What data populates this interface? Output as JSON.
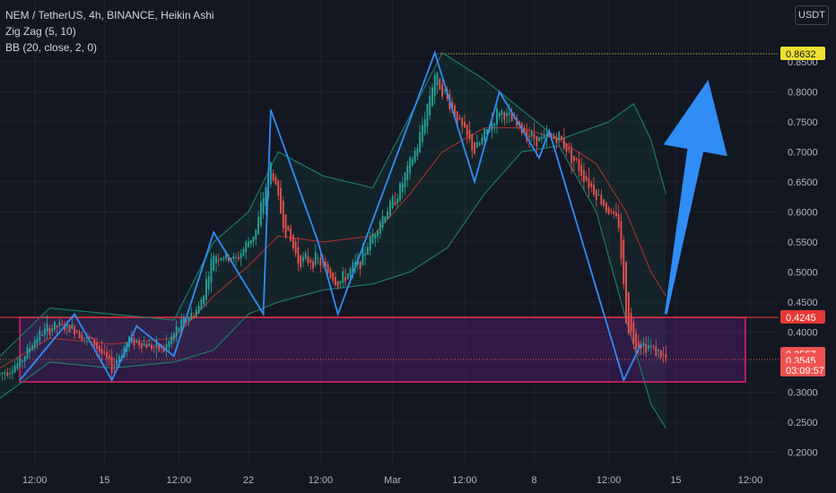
{
  "legend": {
    "symbol_line": "NEM / TetherUS, 4h, BINANCE, Heikin Ashi",
    "zigzag_line": "Zig Zag (5, 10)",
    "bb_line": "BB (20, close, 2, 0)"
  },
  "currency_label": "USDT",
  "colors": {
    "background": "#131722",
    "grid": "#1e222d",
    "candle_up": "#26a69a",
    "candle_down": "#ef5350",
    "zigzag": "#2f8df5",
    "bb_band": "#1e7a64",
    "bb_basis": "#b3332f",
    "zone_border": "#e91e63",
    "zone_fill": "#7b1fa2",
    "arrow": "#2f8df5",
    "high_line": "#f0e130",
    "resistance_line": "#e53935"
  },
  "chart_data": {
    "type": "candlestick",
    "y_axis": {
      "ticks": [
        "0.8500",
        "0.8000",
        "0.7500",
        "0.7000",
        "0.6500",
        "0.6000",
        "0.5500",
        "0.5000",
        "0.4500",
        "0.4000",
        "0.3500",
        "0.3000",
        "0.2500",
        "0.2000"
      ],
      "tick_values": [
        0.85,
        0.8,
        0.75,
        0.7,
        0.65,
        0.6,
        0.55,
        0.5,
        0.45,
        0.4,
        0.35,
        0.3,
        0.25,
        0.2
      ],
      "range": [
        0.178,
        0.9
      ]
    },
    "x_axis": {
      "ticks": [
        "12:00",
        "15",
        "12:00",
        "22",
        "12:00",
        "Mar",
        "12:00",
        "8",
        "12:00",
        "15",
        "12:00"
      ],
      "tick_index": [
        14,
        42,
        72,
        100,
        129,
        158,
        187,
        215,
        245,
        272,
        302
      ]
    },
    "price_labels": [
      {
        "text": "0.8632",
        "value": 0.8632,
        "style": "yellow"
      },
      {
        "text": "0.4245",
        "value": 0.4245,
        "style": "red-solid"
      },
      {
        "text": "0.3557",
        "value": 0.3557,
        "style": "red"
      },
      {
        "text": "0.3545",
        "value": 0.3545,
        "style": "red"
      },
      {
        "text": "03:09:57",
        "value": 0.332,
        "style": "red-timer"
      }
    ],
    "horizontal_lines": [
      {
        "value": 0.8632,
        "style": "dotted-yellow",
        "from_index": 175
      },
      {
        "value": 0.4245,
        "style": "solid-red",
        "from_index": 0
      },
      {
        "value": 0.3545,
        "style": "dotted-red",
        "from_index": 0
      }
    ],
    "zone": {
      "top": 0.4245,
      "bottom": 0.317,
      "from_index": 8,
      "to_index": 300
    },
    "arrow": {
      "from_index": 268,
      "from_value": 0.43,
      "to_index": 285,
      "to_value": 0.82
    },
    "zigzag": [
      {
        "i": 8,
        "v": 0.32
      },
      {
        "i": 30,
        "v": 0.43
      },
      {
        "i": 45,
        "v": 0.32
      },
      {
        "i": 55,
        "v": 0.41
      },
      {
        "i": 70,
        "v": 0.36
      },
      {
        "i": 86,
        "v": 0.566
      },
      {
        "i": 106,
        "v": 0.43
      },
      {
        "i": 109,
        "v": 0.77
      },
      {
        "i": 128,
        "v": 0.55
      },
      {
        "i": 136,
        "v": 0.43
      },
      {
        "i": 175,
        "v": 0.865
      },
      {
        "i": 191,
        "v": 0.65
      },
      {
        "i": 201,
        "v": 0.8
      },
      {
        "i": 217,
        "v": 0.69
      },
      {
        "i": 221,
        "v": 0.735
      },
      {
        "i": 251,
        "v": 0.32
      },
      {
        "i": 258,
        "v": 0.38
      }
    ],
    "candle_path": [
      {
        "i": 0,
        "v": 0.33
      },
      {
        "i": 8,
        "v": 0.35
      },
      {
        "i": 15,
        "v": 0.395
      },
      {
        "i": 22,
        "v": 0.41
      },
      {
        "i": 30,
        "v": 0.405
      },
      {
        "i": 38,
        "v": 0.38
      },
      {
        "i": 45,
        "v": 0.34
      },
      {
        "i": 52,
        "v": 0.39
      },
      {
        "i": 58,
        "v": 0.38
      },
      {
        "i": 66,
        "v": 0.37
      },
      {
        "i": 72,
        "v": 0.41
      },
      {
        "i": 80,
        "v": 0.44
      },
      {
        "i": 86,
        "v": 0.53
      },
      {
        "i": 95,
        "v": 0.52
      },
      {
        "i": 103,
        "v": 0.57
      },
      {
        "i": 109,
        "v": 0.68
      },
      {
        "i": 114,
        "v": 0.58
      },
      {
        "i": 120,
        "v": 0.52
      },
      {
        "i": 128,
        "v": 0.52
      },
      {
        "i": 136,
        "v": 0.48
      },
      {
        "i": 145,
        "v": 0.52
      },
      {
        "i": 152,
        "v": 0.58
      },
      {
        "i": 160,
        "v": 0.63
      },
      {
        "i": 168,
        "v": 0.71
      },
      {
        "i": 175,
        "v": 0.83
      },
      {
        "i": 182,
        "v": 0.77
      },
      {
        "i": 191,
        "v": 0.7
      },
      {
        "i": 201,
        "v": 0.77
      },
      {
        "i": 210,
        "v": 0.735
      },
      {
        "i": 217,
        "v": 0.72
      },
      {
        "i": 225,
        "v": 0.725
      },
      {
        "i": 235,
        "v": 0.66
      },
      {
        "i": 245,
        "v": 0.6
      },
      {
        "i": 249,
        "v": 0.58
      },
      {
        "i": 252,
        "v": 0.42
      },
      {
        "i": 255,
        "v": 0.385
      },
      {
        "i": 262,
        "v": 0.375
      },
      {
        "i": 268,
        "v": 0.355
      }
    ],
    "bb_upper": [
      {
        "i": 0,
        "v": 0.36
      },
      {
        "i": 20,
        "v": 0.44
      },
      {
        "i": 45,
        "v": 0.43
      },
      {
        "i": 70,
        "v": 0.42
      },
      {
        "i": 86,
        "v": 0.55
      },
      {
        "i": 100,
        "v": 0.6
      },
      {
        "i": 112,
        "v": 0.7
      },
      {
        "i": 130,
        "v": 0.66
      },
      {
        "i": 150,
        "v": 0.64
      },
      {
        "i": 165,
        "v": 0.76
      },
      {
        "i": 178,
        "v": 0.865
      },
      {
        "i": 195,
        "v": 0.82
      },
      {
        "i": 210,
        "v": 0.77
      },
      {
        "i": 225,
        "v": 0.72
      },
      {
        "i": 245,
        "v": 0.75
      },
      {
        "i": 255,
        "v": 0.78
      },
      {
        "i": 262,
        "v": 0.72
      },
      {
        "i": 268,
        "v": 0.63
      }
    ],
    "bb_basis": [
      {
        "i": 0,
        "v": 0.34
      },
      {
        "i": 20,
        "v": 0.39
      },
      {
        "i": 45,
        "v": 0.38
      },
      {
        "i": 70,
        "v": 0.39
      },
      {
        "i": 86,
        "v": 0.46
      },
      {
        "i": 100,
        "v": 0.51
      },
      {
        "i": 112,
        "v": 0.56
      },
      {
        "i": 130,
        "v": 0.55
      },
      {
        "i": 150,
        "v": 0.56
      },
      {
        "i": 165,
        "v": 0.63
      },
      {
        "i": 178,
        "v": 0.7
      },
      {
        "i": 195,
        "v": 0.74
      },
      {
        "i": 210,
        "v": 0.74
      },
      {
        "i": 225,
        "v": 0.72
      },
      {
        "i": 240,
        "v": 0.68
      },
      {
        "i": 252,
        "v": 0.6
      },
      {
        "i": 262,
        "v": 0.5
      },
      {
        "i": 268,
        "v": 0.46
      }
    ],
    "bb_lower": [
      {
        "i": 0,
        "v": 0.29
      },
      {
        "i": 20,
        "v": 0.35
      },
      {
        "i": 45,
        "v": 0.34
      },
      {
        "i": 70,
        "v": 0.35
      },
      {
        "i": 86,
        "v": 0.37
      },
      {
        "i": 100,
        "v": 0.43
      },
      {
        "i": 112,
        "v": 0.45
      },
      {
        "i": 130,
        "v": 0.47
      },
      {
        "i": 150,
        "v": 0.48
      },
      {
        "i": 165,
        "v": 0.5
      },
      {
        "i": 180,
        "v": 0.54
      },
      {
        "i": 195,
        "v": 0.63
      },
      {
        "i": 210,
        "v": 0.7
      },
      {
        "i": 225,
        "v": 0.71
      },
      {
        "i": 240,
        "v": 0.6
      },
      {
        "i": 252,
        "v": 0.42
      },
      {
        "i": 262,
        "v": 0.28
      },
      {
        "i": 268,
        "v": 0.24
      }
    ]
  }
}
